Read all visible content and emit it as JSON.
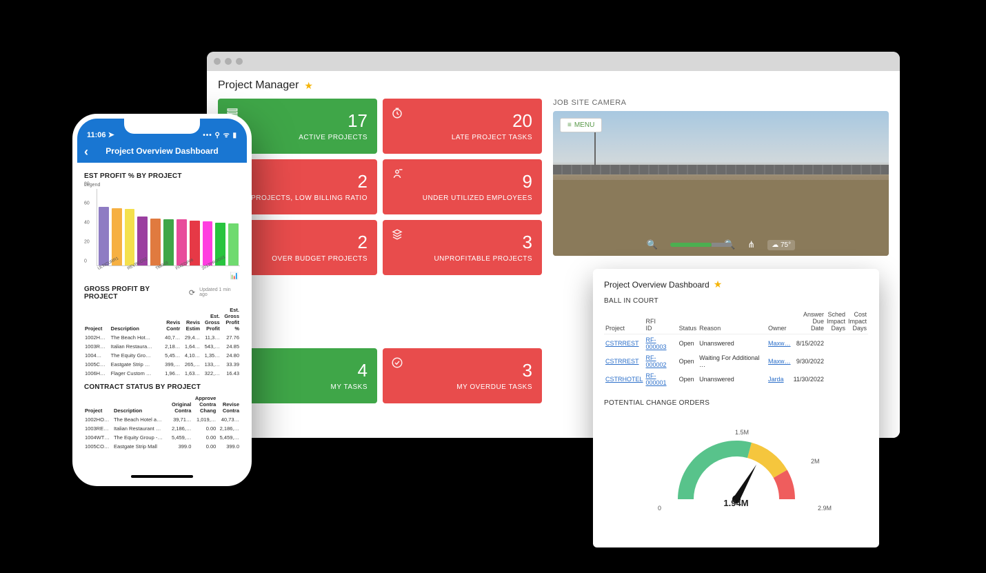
{
  "browser": {
    "page_title": "Project Manager",
    "tiles": [
      [
        {
          "color": "green",
          "icon": "list",
          "value": "17",
          "label": "ACTIVE PROJECTS"
        },
        {
          "color": "red",
          "icon": "clock",
          "value": "20",
          "label": "LATE PROJECT TASKS"
        }
      ],
      [
        {
          "color": "red",
          "icon": "doc",
          "value": "2",
          "label": "PROJECTS, LOW BILLING RATIO"
        },
        {
          "color": "red",
          "icon": "person-off",
          "value": "9",
          "label": "UNDER UTILIZED EMPLOYEES"
        }
      ],
      [
        {
          "color": "red",
          "icon": "budget",
          "value": "2",
          "label": "OVER BUDGET PROJECTS"
        },
        {
          "color": "red",
          "icon": "stack",
          "value": "3",
          "label": "UNPROFITABLE PROJECTS"
        }
      ],
      [
        {
          "color": "green",
          "icon": "check-list",
          "value": "4",
          "label": "MY TASKS"
        },
        {
          "color": "red",
          "icon": "check-circle",
          "value": "3",
          "label": "MY OVERDUE TASKS"
        }
      ]
    ],
    "tile_colors": {
      "green": "#3fa648",
      "red": "#e84c4c"
    },
    "camera": {
      "section_title": "JOB SITE CAMERA",
      "menu_label": "MENU",
      "temp": "75°"
    }
  },
  "overview": {
    "title": "Project Overview Dashboard",
    "ball_in_court": {
      "label": "BALL IN COURT",
      "columns": [
        "Project",
        "RFI ID",
        "Status",
        "Reason",
        "Owner",
        "Answer Due Date",
        "Sched Impact Days",
        "Cost Impact Days"
      ],
      "rows": [
        {
          "project": "CSTRREST",
          "rfi": "RF-000003",
          "status": "Open",
          "reason": "Unanswered",
          "owner": "Maxw…",
          "due": "8/15/2022",
          "sched": "",
          "cost": ""
        },
        {
          "project": "CSTRREST",
          "rfi": "RF-000002",
          "status": "Open",
          "reason": "Waiting For Additional …",
          "owner": "Maxw…",
          "due": "9/30/2022",
          "sched": "",
          "cost": ""
        },
        {
          "project": "CSTRHOTEL",
          "rfi": "RF-000001",
          "status": "Open",
          "reason": "Unanswered",
          "owner": "Jarda",
          "due": "11/30/2022",
          "sched": "",
          "cost": ""
        }
      ]
    },
    "gauge": {
      "section_label": "POTENTIAL CHANGE ORDERS",
      "value_label": "1.94M",
      "ticks": {
        "min": "0",
        "t1": "1.5M",
        "t2": "2M",
        "max": "2.9M"
      },
      "colors": {
        "green": "#58c38b",
        "yellow": "#f5c63d",
        "red": "#ef5d5d",
        "needle": "#111111"
      },
      "ranges_deg": {
        "green": [
          180,
          285
        ],
        "yellow": [
          285,
          330
        ],
        "red": [
          330,
          360
        ]
      },
      "needle_angle_deg": 300
    }
  },
  "phone": {
    "time": "11:06",
    "header": "Project Overview Dashboard",
    "est_profit": {
      "title": "EST PROFIT % BY PROJECT",
      "legend_label": "Legend",
      "y_ticks": [
        0,
        20,
        40,
        60,
        80
      ],
      "y_max": 80,
      "bars": [
        {
          "label": "ULTICURR1",
          "value": 61,
          "color": "#8e7cc3"
        },
        {
          "label": "",
          "value": 60,
          "color": "#f6b042"
        },
        {
          "label": "REVREC02",
          "value": 59,
          "color": "#f4e04d"
        },
        {
          "label": "",
          "value": 51,
          "color": "#9b3fa0"
        },
        {
          "label": "TMR03",
          "value": 49,
          "color": "#e07a3f"
        },
        {
          "label": "",
          "value": 48,
          "color": "#3fa648"
        },
        {
          "label": "FIXEDP06",
          "value": 48,
          "color": "#e84c9b"
        },
        {
          "label": "",
          "value": 47,
          "color": "#e63946"
        },
        {
          "label": "2017PROG01",
          "value": 46,
          "color": "#ff3ee0"
        },
        {
          "label": "",
          "value": 45,
          "color": "#28c43e"
        },
        {
          "label": "",
          "value": 44,
          "color": "#6fda6f"
        }
      ]
    },
    "gross_profit": {
      "title": "GROSS PROFIT BY PROJECT",
      "updated": "Updated 1 min ago",
      "columns": [
        "Project",
        "Description",
        "Revis Contr",
        "Revis Estim",
        "Est. Gross Profit",
        "Est. Gross Profit %"
      ],
      "rows": [
        [
          "1002H…",
          "The Beach Hot…",
          "40,7…",
          "29,4…",
          "11,3…",
          "27.76"
        ],
        [
          "1003R…",
          "Italian Restaura…",
          "2,18…",
          "1,64…",
          "543,…",
          "24.85"
        ],
        [
          "1004…",
          "The Equity Gro…",
          "5,45…",
          "4,10…",
          "1,35…",
          "24.80"
        ],
        [
          "1005C…",
          "Eastgate Strip …",
          "399,…",
          "265,…",
          "133,…",
          "33.39"
        ],
        [
          "1006H…",
          "Flager Custom …",
          "1,96…",
          "1,63…",
          "322,…",
          "16.43"
        ]
      ]
    },
    "contract_status": {
      "title": "CONTRACT STATUS BY PROJECT",
      "columns": [
        "Project",
        "Description",
        "Original Contra",
        "Approve Contra Chang",
        "Revise Contra"
      ],
      "rows": [
        [
          "1002HO…",
          "The Beach Hotel a…",
          "39,71…",
          "1,019,…",
          "40,73…"
        ],
        [
          "1003RE…",
          "Italian Restaurant …",
          "2,186,…",
          "0.00",
          "2,186,…"
        ],
        [
          "1004WT…",
          "The Equity Group -…",
          "5,459,…",
          "0.00",
          "5,459,…"
        ],
        [
          "1005CO…",
          "Eastgate Strip Mall",
          "399.0",
          "0.00",
          "399.0"
        ]
      ]
    }
  }
}
